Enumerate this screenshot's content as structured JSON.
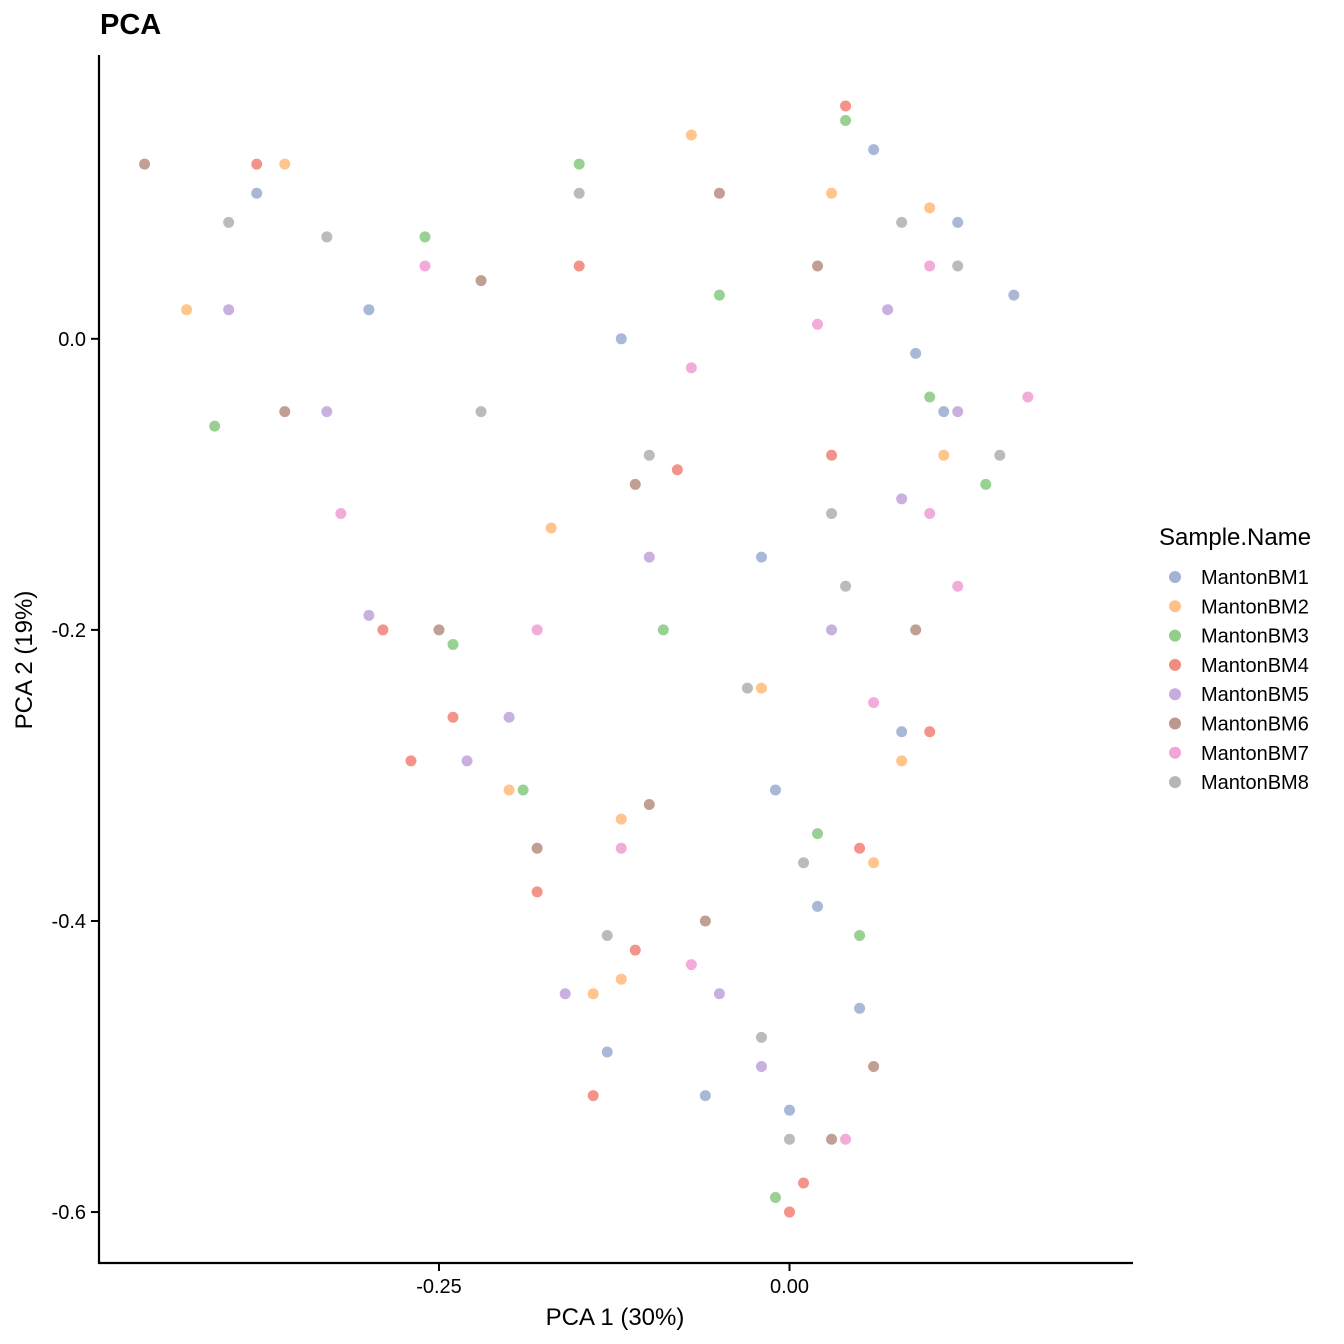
{
  "chart_data": {
    "type": "scatter",
    "title": "PCA",
    "xlabel": "PCA 1 (30%)",
    "ylabel": "PCA 2 (19%)",
    "xlim": [
      -0.4925,
      0.245
    ],
    "ylim": [
      -0.635,
      0.195
    ],
    "x_ticks": [
      {
        "value": -0.25,
        "label": "-0.25"
      },
      {
        "value": 0.0,
        "label": "0.00"
      }
    ],
    "y_ticks": [
      {
        "value": 0.0,
        "label": "0.0"
      },
      {
        "value": -0.2,
        "label": "-0.2"
      },
      {
        "value": -0.4,
        "label": "-0.4"
      },
      {
        "value": -0.6,
        "label": "-0.6"
      }
    ],
    "grid": false,
    "legend": {
      "title": "Sample.Name",
      "position": "right",
      "entries": [
        {
          "name": "MantonBM1",
          "color": "#8DA0CB"
        },
        {
          "name": "MantonBM2",
          "color": "#FFB266"
        },
        {
          "name": "MantonBM3",
          "color": "#77C16F"
        },
        {
          "name": "MantonBM4",
          "color": "#EF6F62"
        },
        {
          "name": "MantonBM5",
          "color": "#B797D4"
        },
        {
          "name": "MantonBM6",
          "color": "#AC7F71"
        },
        {
          "name": "MantonBM7",
          "color": "#EE90CD"
        },
        {
          "name": "MantonBM8",
          "color": "#A4A4A4"
        }
      ]
    },
    "series": [
      {
        "name": "MantonBM1",
        "points": [
          [
            0.12,
            0.08
          ],
          [
            0.16,
            0.03
          ],
          [
            0.06,
            0.13
          ],
          [
            0.09,
            -0.01
          ],
          [
            -0.38,
            0.1
          ],
          [
            -0.3,
            0.02
          ],
          [
            -0.12,
            0.0
          ],
          [
            -0.02,
            -0.15
          ],
          [
            -0.01,
            -0.31
          ],
          [
            0.08,
            -0.27
          ],
          [
            0.05,
            -0.46
          ],
          [
            -0.13,
            -0.49
          ],
          [
            0.0,
            -0.53
          ],
          [
            -0.06,
            -0.52
          ],
          [
            0.02,
            -0.39
          ],
          [
            0.11,
            -0.05
          ]
        ]
      },
      {
        "name": "MantonBM2",
        "points": [
          [
            0.1,
            0.09
          ],
          [
            -0.43,
            0.02
          ],
          [
            -0.2,
            -0.31
          ],
          [
            -0.12,
            -0.33
          ],
          [
            0.08,
            -0.29
          ],
          [
            0.11,
            -0.08
          ],
          [
            -0.36,
            0.12
          ],
          [
            -0.07,
            0.14
          ],
          [
            0.03,
            0.1
          ],
          [
            -0.12,
            -0.44
          ],
          [
            -0.14,
            -0.45
          ],
          [
            0.06,
            -0.36
          ],
          [
            -0.17,
            -0.13
          ],
          [
            -0.02,
            -0.24
          ]
        ]
      },
      {
        "name": "MantonBM3",
        "points": [
          [
            0.04,
            0.15
          ],
          [
            -0.41,
            -0.06
          ],
          [
            -0.24,
            -0.21
          ],
          [
            -0.19,
            -0.31
          ],
          [
            0.05,
            -0.41
          ],
          [
            -0.01,
            -0.59
          ],
          [
            -0.15,
            0.12
          ],
          [
            -0.05,
            0.03
          ],
          [
            0.1,
            -0.04
          ],
          [
            -0.09,
            -0.2
          ],
          [
            0.02,
            -0.34
          ],
          [
            -0.26,
            0.07
          ],
          [
            0.14,
            -0.1
          ]
        ]
      },
      {
        "name": "MantonBM4",
        "points": [
          [
            0.04,
            0.16
          ],
          [
            -0.38,
            0.12
          ],
          [
            -0.29,
            -0.2
          ],
          [
            -0.27,
            -0.29
          ],
          [
            -0.24,
            -0.26
          ],
          [
            -0.18,
            -0.38
          ],
          [
            -0.14,
            -0.52
          ],
          [
            -0.11,
            -0.42
          ],
          [
            0.01,
            -0.58
          ],
          [
            -0.0,
            -0.6
          ],
          [
            0.05,
            -0.35
          ],
          [
            0.1,
            -0.27
          ],
          [
            -0.15,
            0.05
          ],
          [
            -0.08,
            -0.09
          ],
          [
            0.03,
            -0.08
          ]
        ]
      },
      {
        "name": "MantonBM5",
        "points": [
          [
            -0.3,
            -0.19
          ],
          [
            -0.23,
            -0.29
          ],
          [
            -0.2,
            -0.26
          ],
          [
            -0.16,
            -0.45
          ],
          [
            -0.05,
            -0.45
          ],
          [
            0.08,
            -0.11
          ],
          [
            0.12,
            -0.05
          ],
          [
            -0.4,
            0.02
          ],
          [
            -0.33,
            -0.05
          ],
          [
            -0.1,
            -0.15
          ],
          [
            -0.02,
            -0.5
          ],
          [
            0.03,
            -0.2
          ],
          [
            0.07,
            0.02
          ]
        ]
      },
      {
        "name": "MantonBM6",
        "points": [
          [
            -0.46,
            0.12
          ],
          [
            -0.25,
            -0.2
          ],
          [
            -0.18,
            -0.35
          ],
          [
            -0.1,
            -0.32
          ],
          [
            0.06,
            -0.5
          ],
          [
            0.03,
            -0.55
          ],
          [
            -0.36,
            -0.05
          ],
          [
            -0.22,
            0.04
          ],
          [
            -0.05,
            0.1
          ],
          [
            0.02,
            0.05
          ],
          [
            -0.06,
            -0.4
          ],
          [
            -0.11,
            -0.1
          ],
          [
            0.09,
            -0.2
          ]
        ]
      },
      {
        "name": "MantonBM7",
        "points": [
          [
            0.17,
            -0.04
          ],
          [
            0.12,
            -0.17
          ],
          [
            0.1,
            -0.12
          ],
          [
            -0.18,
            -0.2
          ],
          [
            -0.12,
            -0.35
          ],
          [
            -0.07,
            -0.43
          ],
          [
            0.04,
            -0.55
          ],
          [
            -0.32,
            -0.12
          ],
          [
            -0.26,
            0.05
          ],
          [
            0.02,
            0.01
          ],
          [
            0.1,
            0.05
          ],
          [
            -0.07,
            -0.02
          ],
          [
            0.06,
            -0.25
          ]
        ]
      },
      {
        "name": "MantonBM8",
        "points": [
          [
            -0.02,
            -0.48
          ],
          [
            0.0,
            -0.55
          ],
          [
            0.15,
            -0.08
          ],
          [
            0.04,
            -0.17
          ],
          [
            -0.13,
            -0.41
          ],
          [
            -0.4,
            0.08
          ],
          [
            -0.33,
            0.07
          ],
          [
            0.12,
            0.05
          ],
          [
            0.08,
            0.08
          ],
          [
            -0.1,
            -0.08
          ],
          [
            -0.03,
            -0.24
          ],
          [
            0.03,
            -0.12
          ],
          [
            0.01,
            -0.36
          ],
          [
            -0.22,
            -0.05
          ],
          [
            -0.15,
            0.1
          ]
        ]
      }
    ]
  }
}
